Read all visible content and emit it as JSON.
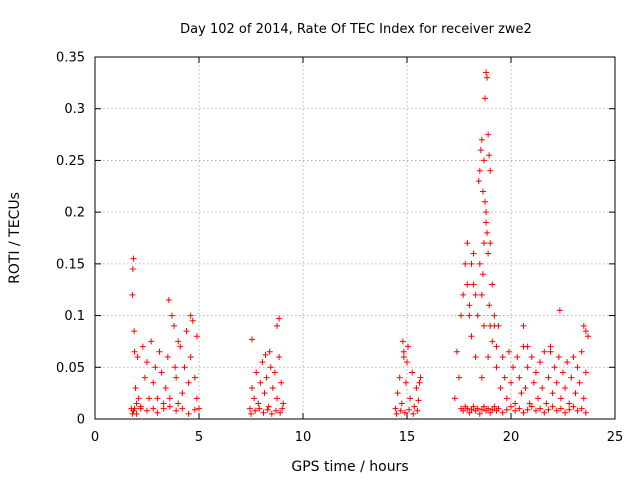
{
  "chart_data": {
    "type": "scatter",
    "title": "Day 102 of 2014, Rate Of TEC Index for receiver zwe2",
    "xlabel": "GPS time / hours",
    "ylabel": "ROTI / TECUs",
    "xlim": [
      0,
      25
    ],
    "ylim": [
      0,
      0.35
    ],
    "xticks": [
      0,
      5,
      10,
      15,
      20,
      25
    ],
    "xtick_labels": [
      "0",
      "5",
      "10",
      "15",
      "20",
      "25"
    ],
    "yticks": [
      0,
      0.05,
      0.1,
      0.15,
      0.2,
      0.25,
      0.3,
      0.35
    ],
    "ytick_labels": [
      "0",
      "0.05",
      "0.1",
      "0.15",
      "0.2",
      "0.25",
      "0.3",
      "0.35"
    ],
    "grid": true,
    "marker": "+",
    "color": "#ff0000",
    "series": [
      {
        "name": "ROTI",
        "x": [
          1.75,
          1.8,
          1.85,
          1.9,
          1.95,
          2.0,
          2.05,
          2.1,
          2.2,
          2.3,
          2.4,
          2.5,
          2.6,
          2.7,
          2.8,
          2.9,
          3.0,
          3.1,
          3.2,
          3.3,
          3.4,
          3.5,
          3.6,
          3.7,
          3.8,
          3.9,
          4.0,
          4.1,
          4.2,
          4.3,
          4.4,
          4.5,
          4.6,
          4.7,
          4.8,
          4.9,
          5.0,
          1.8,
          1.85,
          1.9,
          2.0,
          2.2,
          2.5,
          2.8,
          3.0,
          3.3,
          3.6,
          3.9,
          4.2,
          4.5,
          4.8,
          1.82,
          1.88,
          3.55,
          3.85,
          4.0,
          4.6,
          4.9,
          7.45,
          7.55,
          7.65,
          7.75,
          7.85,
          7.95,
          8.05,
          8.15,
          8.25,
          8.35,
          8.45,
          8.55,
          8.65,
          8.75,
          8.85,
          8.95,
          9.05,
          7.5,
          7.7,
          7.9,
          8.1,
          8.3,
          8.5,
          8.7,
          8.9,
          9.0,
          8.75,
          8.85,
          7.55,
          8.2,
          8.4,
          14.45,
          14.55,
          14.65,
          14.75,
          14.85,
          14.95,
          15.05,
          15.15,
          15.25,
          15.35,
          15.45,
          15.55,
          15.65,
          14.5,
          14.7,
          14.9,
          15.1,
          15.3,
          15.5,
          14.8,
          14.85,
          15.0,
          15.6,
          17.3,
          17.4,
          17.5,
          17.6,
          17.7,
          17.8,
          17.9,
          18.0,
          18.1,
          18.2,
          18.3,
          18.4,
          18.5,
          18.6,
          18.7,
          18.8,
          18.9,
          19.0,
          19.1,
          19.2,
          19.3,
          19.4,
          19.5,
          19.6,
          19.7,
          19.8,
          19.9,
          20.0,
          20.1,
          20.2,
          20.3,
          20.4,
          20.5,
          20.6,
          20.7,
          20.8,
          20.9,
          21.0,
          21.1,
          21.2,
          21.3,
          21.4,
          21.5,
          21.6,
          21.7,
          21.8,
          21.9,
          22.0,
          22.1,
          22.2,
          22.3,
          22.4,
          22.5,
          22.6,
          22.7,
          22.8,
          22.9,
          23.0,
          23.1,
          23.2,
          23.3,
          23.4,
          23.5,
          23.6,
          23.7,
          17.6,
          17.7,
          17.8,
          17.9,
          18.0,
          18.1,
          18.2,
          18.3,
          18.4,
          18.5,
          18.6,
          18.7,
          18.8,
          18.9,
          19.0,
          19.1,
          19.2,
          19.3,
          19.4,
          19.6,
          19.8,
          20.0,
          20.2,
          20.4,
          20.6,
          20.8,
          21.0,
          21.2,
          21.4,
          21.6,
          21.8,
          22.0,
          22.2,
          22.4,
          22.6,
          22.8,
          23.0,
          23.2,
          23.4,
          23.6,
          18.45,
          18.5,
          18.55,
          18.6,
          18.65,
          18.7,
          18.75,
          18.8,
          18.85,
          18.9,
          18.95,
          19.0,
          18.75,
          18.8,
          18.85,
          18.9,
          18.6,
          18.65,
          18.7,
          18.95,
          19.0,
          17.9,
          18.0,
          18.1,
          18.2,
          18.3,
          19.1,
          19.2,
          19.3,
          22.35,
          23.5,
          23.6,
          21.9,
          20.6,
          20.8
        ],
        "y": [
          0.01,
          0.12,
          0.155,
          0.065,
          0.03,
          0.015,
          0.06,
          0.02,
          0.01,
          0.07,
          0.04,
          0.055,
          0.02,
          0.075,
          0.035,
          0.05,
          0.02,
          0.065,
          0.045,
          0.015,
          0.03,
          0.06,
          0.02,
          0.1,
          0.09,
          0.04,
          0.015,
          0.07,
          0.025,
          0.05,
          0.085,
          0.035,
          0.06,
          0.095,
          0.04,
          0.02,
          0.01,
          0.005,
          0.008,
          0.01,
          0.005,
          0.012,
          0.008,
          0.01,
          0.006,
          0.01,
          0.012,
          0.008,
          0.01,
          0.005,
          0.009,
          0.145,
          0.085,
          0.115,
          0.05,
          0.075,
          0.1,
          0.08,
          0.01,
          0.03,
          0.02,
          0.045,
          0.015,
          0.035,
          0.055,
          0.025,
          0.04,
          0.012,
          0.05,
          0.03,
          0.045,
          0.02,
          0.06,
          0.035,
          0.015,
          0.005,
          0.008,
          0.01,
          0.006,
          0.009,
          0.005,
          0.008,
          0.006,
          0.01,
          0.09,
          0.097,
          0.077,
          0.062,
          0.065,
          0.01,
          0.025,
          0.04,
          0.015,
          0.06,
          0.035,
          0.07,
          0.02,
          0.045,
          0.012,
          0.03,
          0.018,
          0.04,
          0.005,
          0.008,
          0.006,
          0.009,
          0.005,
          0.008,
          0.075,
          0.065,
          0.055,
          0.035,
          0.02,
          0.065,
          0.04,
          0.1,
          0.12,
          0.15,
          0.17,
          0.1,
          0.08,
          0.13,
          0.06,
          0.1,
          0.15,
          0.04,
          0.09,
          0.2,
          0.06,
          0.17,
          0.13,
          0.1,
          0.05,
          0.09,
          0.03,
          0.06,
          0.04,
          0.02,
          0.065,
          0.035,
          0.05,
          0.015,
          0.06,
          0.04,
          0.025,
          0.07,
          0.03,
          0.05,
          0.015,
          0.06,
          0.035,
          0.045,
          0.02,
          0.055,
          0.03,
          0.065,
          0.015,
          0.04,
          0.07,
          0.025,
          0.05,
          0.035,
          0.06,
          0.02,
          0.045,
          0.03,
          0.055,
          0.015,
          0.04,
          0.06,
          0.025,
          0.05,
          0.035,
          0.065,
          0.02,
          0.045,
          0.08,
          0.01,
          0.008,
          0.012,
          0.01,
          0.006,
          0.009,
          0.012,
          0.008,
          0.01,
          0.005,
          0.009,
          0.012,
          0.008,
          0.01,
          0.006,
          0.009,
          0.012,
          0.008,
          0.01,
          0.006,
          0.009,
          0.012,
          0.008,
          0.01,
          0.006,
          0.009,
          0.012,
          0.008,
          0.01,
          0.006,
          0.009,
          0.012,
          0.008,
          0.01,
          0.006,
          0.009,
          0.012,
          0.008,
          0.01,
          0.006,
          0.23,
          0.24,
          0.26,
          0.27,
          0.22,
          0.25,
          0.31,
          0.335,
          0.33,
          0.275,
          0.255,
          0.24,
          0.21,
          0.19,
          0.18,
          0.16,
          0.12,
          0.14,
          0.17,
          0.11,
          0.09,
          0.13,
          0.11,
          0.15,
          0.16,
          0.12,
          0.075,
          0.09,
          0.07,
          0.105,
          0.09,
          0.085,
          0.065,
          0.09,
          0.07
        ]
      }
    ]
  }
}
